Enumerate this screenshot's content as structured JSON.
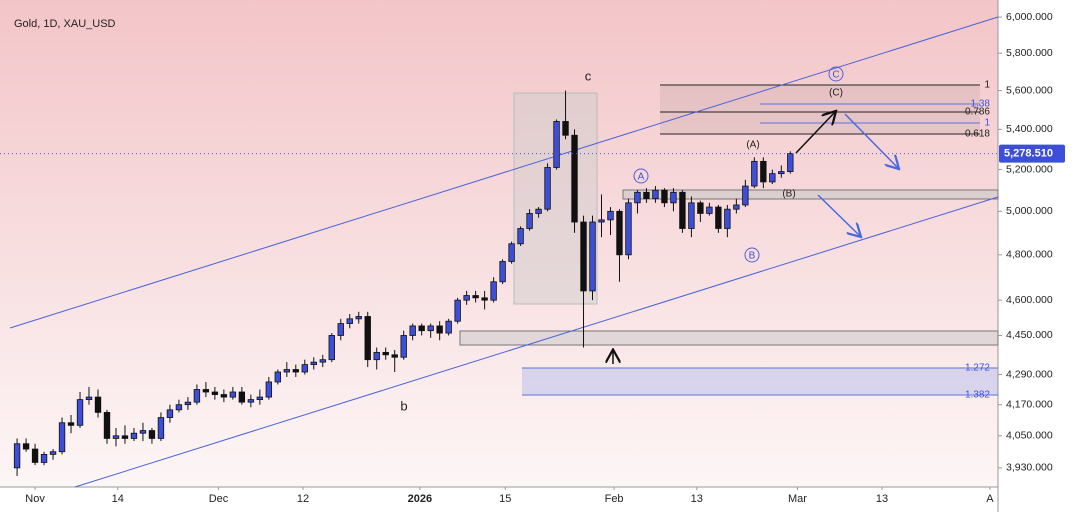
{
  "chart_data": {
    "type": "candlestick",
    "title": "Gold, 1D, XAU_USD",
    "log_scale": true,
    "up_color": "#3d4fd6",
    "down_color": "#111111",
    "x": [
      2,
      3,
      4,
      5,
      6,
      7,
      8,
      9,
      10,
      11,
      12,
      13,
      14,
      15,
      16,
      17,
      18,
      19,
      20,
      21,
      22,
      23,
      24,
      25,
      26,
      27,
      28,
      29,
      30,
      31,
      32,
      33,
      34,
      35,
      36,
      37,
      38,
      39,
      40,
      41,
      42,
      43,
      44,
      45,
      46,
      47,
      48,
      49,
      50,
      51,
      52,
      53,
      54,
      55,
      56,
      57,
      58,
      59,
      60,
      61,
      62,
      63,
      64,
      65,
      66,
      67,
      68,
      69,
      70,
      71,
      72,
      73,
      74,
      75,
      76,
      77,
      78,
      79,
      80,
      81,
      82,
      83,
      84,
      85,
      86,
      87,
      88
    ],
    "open": [
      3930,
      4020,
      4000,
      3950,
      3980,
      3990,
      4100,
      4090,
      4190,
      4200,
      4140,
      4040,
      4050,
      4040,
      4060,
      4070,
      4040,
      4120,
      4150,
      4170,
      4180,
      4230,
      4220,
      4210,
      4200,
      4220,
      4180,
      4190,
      4200,
      4260,
      4300,
      4310,
      4300,
      4330,
      4340,
      4350,
      4450,
      4500,
      4520,
      4530,
      4350,
      4380,
      4370,
      4360,
      4450,
      4490,
      4470,
      4490,
      4460,
      4510,
      4600,
      4620,
      4610,
      4600,
      4680,
      4770,
      4850,
      4920,
      4990,
      5010,
      5210,
      5440,
      5370,
      4950,
      4640,
      4950,
      4960,
      5000,
      4800,
      5040,
      5090,
      5060,
      5100,
      5040,
      5090,
      4920,
      5040,
      4990,
      5020,
      4920,
      5010,
      5030,
      5120,
      5240,
      5140,
      5180,
      5190
    ],
    "high": [
      4040,
      4040,
      4020,
      3990,
      4000,
      4120,
      4130,
      4220,
      4240,
      4230,
      4150,
      4080,
      4090,
      4080,
      4100,
      4080,
      4140,
      4170,
      4190,
      4200,
      4250,
      4260,
      4240,
      4230,
      4240,
      4240,
      4210,
      4230,
      4280,
      4310,
      4340,
      4330,
      4350,
      4360,
      4370,
      4460,
      4520,
      4540,
      4550,
      4550,
      4400,
      4400,
      4390,
      4470,
      4500,
      4500,
      4500,
      4510,
      4520,
      4610,
      4640,
      4640,
      4640,
      4700,
      4780,
      4860,
      4930,
      5010,
      5020,
      5230,
      5450,
      5600,
      5400,
      4980,
      4980,
      5080,
      5020,
      5010,
      5060,
      5100,
      5110,
      5120,
      5110,
      5110,
      5100,
      5070,
      5050,
      5040,
      5030,
      5030,
      5060,
      5150,
      5260,
      5260,
      5200,
      5220,
      5290
    ],
    "low": [
      3900,
      3990,
      3940,
      3940,
      3960,
      3980,
      4060,
      4080,
      4170,
      4120,
      4020,
      4010,
      4020,
      4030,
      4030,
      4020,
      4030,
      4100,
      4140,
      4150,
      4170,
      4200,
      4190,
      4180,
      4190,
      4170,
      4160,
      4170,
      4190,
      4250,
      4280,
      4280,
      4290,
      4310,
      4320,
      4340,
      4430,
      4480,
      4500,
      4320,
      4310,
      4350,
      4300,
      4350,
      4430,
      4450,
      4440,
      4430,
      4450,
      4500,
      4580,
      4590,
      4560,
      4590,
      4670,
      4760,
      4840,
      4910,
      4970,
      5000,
      5200,
      5350,
      4900,
      4400,
      4600,
      4880,
      4890,
      4680,
      4780,
      4990,
      5040,
      5040,
      5020,
      5000,
      4900,
      4880,
      4950,
      4980,
      4900,
      4880,
      4990,
      5020,
      5110,
      5110,
      5130,
      5160,
      5180
    ],
    "close": [
      4020,
      4000,
      3950,
      3980,
      3990,
      4100,
      4090,
      4190,
      4200,
      4140,
      4040,
      4050,
      4040,
      4060,
      4070,
      4040,
      4120,
      4150,
      4170,
      4180,
      4230,
      4220,
      4210,
      4200,
      4220,
      4180,
      4190,
      4200,
      4260,
      4300,
      4310,
      4300,
      4330,
      4340,
      4350,
      4450,
      4500,
      4520,
      4530,
      4350,
      4380,
      4370,
      4360,
      4450,
      4490,
      4470,
      4490,
      4460,
      4510,
      4600,
      4620,
      4610,
      4600,
      4680,
      4770,
      4850,
      4920,
      4990,
      5010,
      5210,
      5440,
      5370,
      4950,
      4640,
      4950,
      4960,
      5000,
      4800,
      5040,
      5090,
      5060,
      5100,
      5040,
      5090,
      4920,
      5040,
      4990,
      5020,
      4920,
      5010,
      5030,
      5120,
      5240,
      5140,
      5180,
      5190,
      5278.51
    ],
    "xlim": [
      0.1,
      111.1
    ],
    "xticks": [
      {
        "value": 4.0,
        "label": "Nov"
      },
      {
        "value": 13.2,
        "label": "14"
      },
      {
        "value": 24.4,
        "label": "Dec"
      },
      {
        "value": 33.8,
        "label": "12"
      },
      {
        "value": 46.8,
        "label": "2026"
      },
      {
        "value": 56.3,
        "label": "15"
      },
      {
        "value": 68.4,
        "label": "Feb"
      },
      {
        "value": 77.6,
        "label": "13"
      },
      {
        "value": 88.8,
        "label": "Mar"
      },
      {
        "value": 98.2,
        "label": "13"
      },
      {
        "value": 110.2,
        "label": "A"
      }
    ],
    "ylim": [
      3860,
      6040
    ],
    "yticks": [
      {
        "value": 6000,
        "label": "6,000.000"
      },
      {
        "value": 5800,
        "label": "5,800.000"
      },
      {
        "value": 5600,
        "label": "5,600.000"
      },
      {
        "value": 5400,
        "label": "5,400.000"
      },
      {
        "value": 5200,
        "label": "5,200.000"
      },
      {
        "value": 5000,
        "label": "5,000.000"
      },
      {
        "value": 4800,
        "label": "4,800.000"
      },
      {
        "value": 4600,
        "label": "4,600.000"
      },
      {
        "value": 4450,
        "label": "4,450.000"
      },
      {
        "value": 4290,
        "label": "4,290.000"
      },
      {
        "value": 4170,
        "label": "4,170.000"
      },
      {
        "value": 4050,
        "label": "4,050.000"
      },
      {
        "value": 3930,
        "label": "3,930.000"
      }
    ],
    "last_price": {
      "value": 5278.51,
      "label": "5,278.510"
    },
    "annotations": [
      "c",
      "b",
      "(A)",
      "(B)",
      "(C)",
      "A",
      "B",
      "C",
      "1",
      "0.786",
      "0.618",
      "1.38",
      "1",
      "1.272",
      "1.382"
    ]
  }
}
